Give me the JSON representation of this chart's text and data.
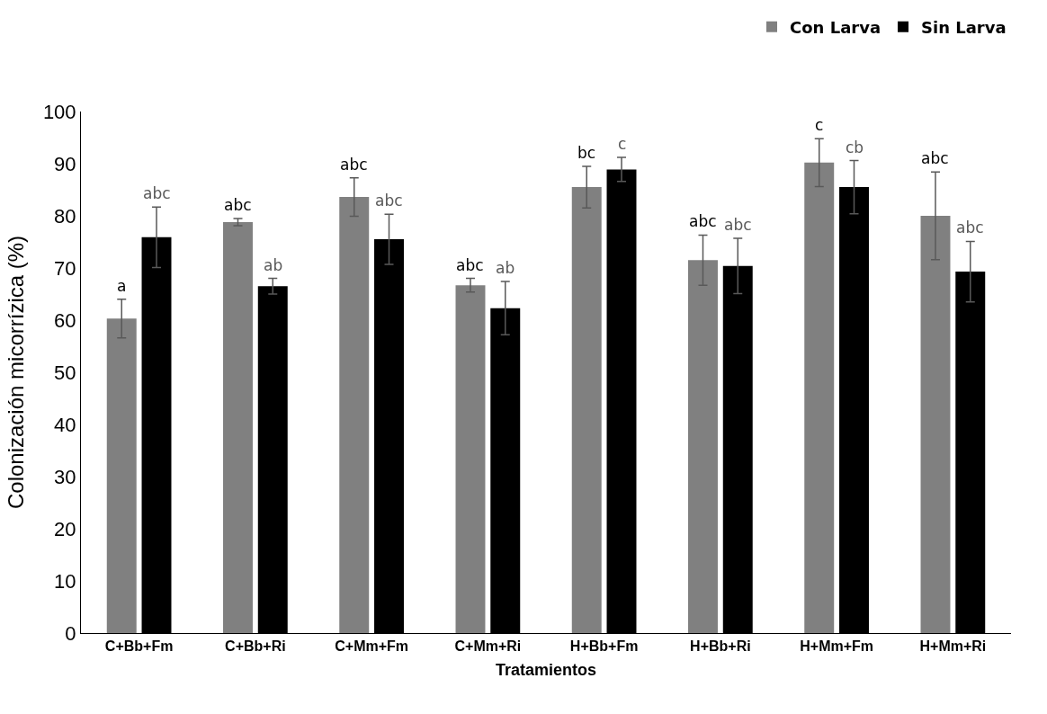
{
  "chart_data": {
    "type": "bar",
    "xlabel": "Tratamientos",
    "ylabel": "Colonización micorrízica (%)",
    "categories": [
      "C+Bb+Fm",
      "C+Bb+Ri",
      "C+Mm+Fm",
      "C+Mm+Ri",
      "H+Bb+Fm",
      "H+Bb+Ri",
      "H+Mm+Fm",
      "H+Mm+Ri"
    ],
    "series": [
      {
        "name": "Con Larva",
        "color": "#808080",
        "values": [
          60.3,
          78.8,
          83.6,
          66.7,
          85.5,
          71.5,
          90.2,
          80.0
        ],
        "errors": [
          3.7,
          0.7,
          3.7,
          1.3,
          4.0,
          4.8,
          4.6,
          8.4
        ],
        "value_labels": [
          "a",
          "abc",
          "abc",
          "abc",
          "bc",
          "abc",
          "c",
          "abc"
        ]
      },
      {
        "name": "Sin Larva",
        "color": "#000000",
        "values": [
          75.9,
          66.5,
          75.5,
          62.3,
          88.9,
          70.4,
          85.5,
          69.3
        ],
        "errors": [
          5.8,
          1.5,
          4.8,
          5.1,
          2.3,
          5.3,
          5.1,
          5.8
        ],
        "value_labels": [
          "abc",
          "ab",
          "abc",
          "ab",
          "c",
          "abc",
          "cb",
          "abc"
        ]
      }
    ],
    "ylim": [
      0,
      100
    ],
    "yticks": [
      0,
      10,
      20,
      30,
      40,
      50,
      60,
      70,
      80,
      90,
      100
    ],
    "grid": false,
    "legend": "top right"
  }
}
